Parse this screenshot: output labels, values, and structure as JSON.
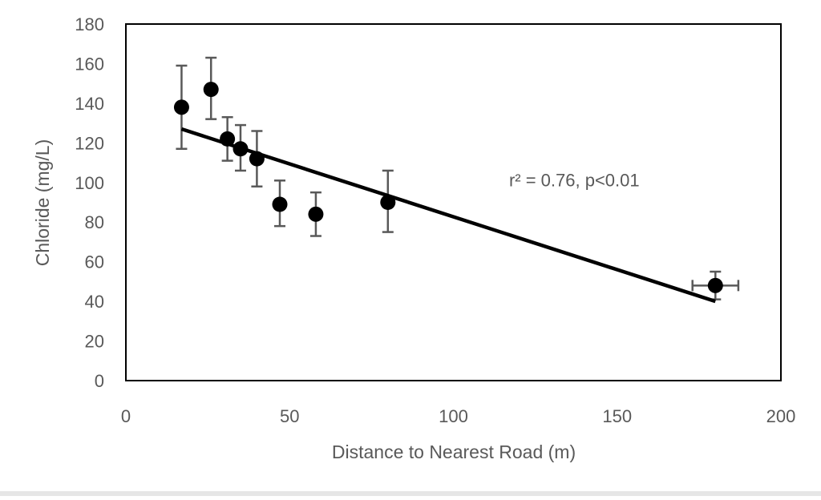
{
  "chart_data": {
    "type": "scatter",
    "title": "",
    "xlabel": "Distance to Nearest Road (m)",
    "ylabel": "Chloride (mg/L)",
    "xlim": [
      0,
      200
    ],
    "ylim": [
      0,
      180
    ],
    "x_ticks": [
      0,
      50,
      100,
      150,
      200
    ],
    "y_ticks": [
      0,
      20,
      40,
      60,
      80,
      100,
      120,
      140,
      160,
      180
    ],
    "grid": false,
    "legend": "none",
    "points": [
      {
        "x": 17,
        "y": 138,
        "y_err_low": 21,
        "y_err_high": 21
      },
      {
        "x": 26,
        "y": 147,
        "y_err_low": 15,
        "y_err_high": 16
      },
      {
        "x": 31,
        "y": 122,
        "y_err_low": 11,
        "y_err_high": 11
      },
      {
        "x": 35,
        "y": 117,
        "y_err_low": 11,
        "y_err_high": 12
      },
      {
        "x": 40,
        "y": 112,
        "y_err_low": 14,
        "y_err_high": 14
      },
      {
        "x": 47,
        "y": 89,
        "y_err_low": 11,
        "y_err_high": 12
      },
      {
        "x": 58,
        "y": 84,
        "y_err_low": 11,
        "y_err_high": 11
      },
      {
        "x": 80,
        "y": 90,
        "y_err_low": 15,
        "y_err_high": 16
      },
      {
        "x": 180,
        "y": 48,
        "y_err_low": 7,
        "y_err_high": 7,
        "x_err_low": 7,
        "x_err_high": 7
      }
    ],
    "trendline": {
      "x": [
        17,
        180
      ],
      "y": [
        127,
        40
      ]
    },
    "annotation": "r² = 0.76, p<0.01",
    "annotation_position": {
      "x": 117,
      "y": 98
    },
    "colors": {
      "marker": "#000000",
      "trendline": "#000000",
      "error_bar": "#595959",
      "axis_text": "#595959",
      "plot_border": "#000000",
      "background": "#ffffff"
    }
  }
}
